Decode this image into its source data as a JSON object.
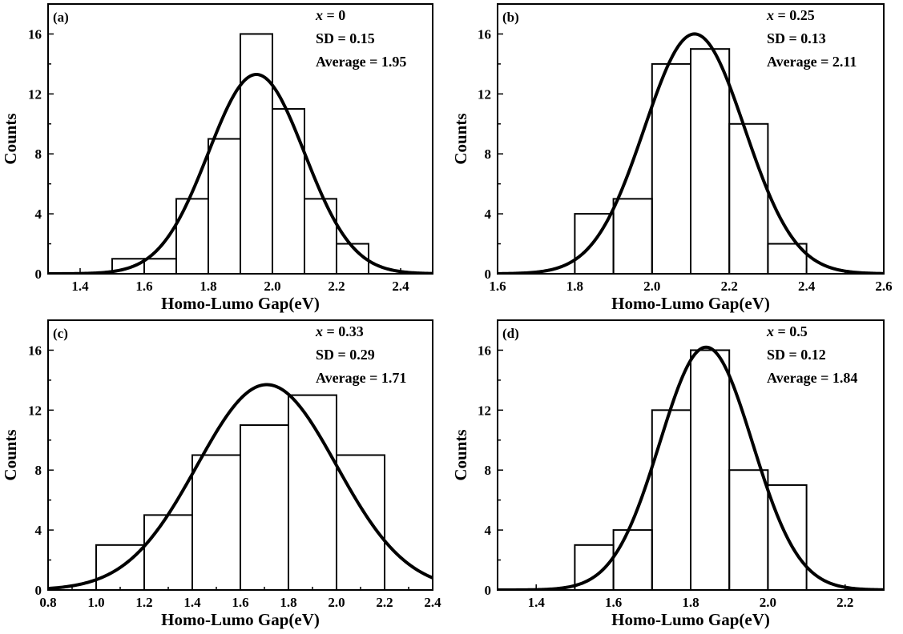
{
  "chart_data": [
    {
      "type": "bar",
      "panel_label": "(a)",
      "xlabel": "Homo-Lumo Gap(eV)",
      "ylabel": "Counts",
      "xlim": [
        1.3,
        2.5
      ],
      "ylim": [
        0,
        18
      ],
      "xticks": [
        1.4,
        1.6,
        1.8,
        2.0,
        2.2,
        2.4
      ],
      "yticks": [
        0,
        4,
        8,
        12,
        16
      ],
      "bins": [
        {
          "from": 1.5,
          "to": 1.6,
          "value": 1
        },
        {
          "from": 1.6,
          "to": 1.7,
          "value": 1
        },
        {
          "from": 1.7,
          "to": 1.8,
          "value": 5
        },
        {
          "from": 1.8,
          "to": 1.9,
          "value": 9
        },
        {
          "from": 1.9,
          "to": 2.0,
          "value": 16
        },
        {
          "from": 2.0,
          "to": 2.1,
          "value": 11
        },
        {
          "from": 2.1,
          "to": 2.2,
          "value": 5
        },
        {
          "from": 2.2,
          "to": 2.3,
          "value": 2
        }
      ],
      "fit": {
        "type": "gaussian",
        "mean": 1.95,
        "sd": 0.15,
        "peak": 13.3
      },
      "annotations": {
        "x_var": "x",
        "x_val": "= 0",
        "sd": "SD = 0.15",
        "avg": "Average = 1.95"
      }
    },
    {
      "type": "bar",
      "panel_label": "(b)",
      "xlabel": "Homo-Lumo Gap(eV)",
      "ylabel": "Counts",
      "xlim": [
        1.6,
        2.6
      ],
      "ylim": [
        0,
        18
      ],
      "xticks": [
        1.6,
        1.8,
        2.0,
        2.2,
        2.4,
        2.6
      ],
      "yticks": [
        0,
        4,
        8,
        12,
        16
      ],
      "bins": [
        {
          "from": 1.8,
          "to": 1.9,
          "value": 4
        },
        {
          "from": 1.9,
          "to": 2.0,
          "value": 5
        },
        {
          "from": 2.0,
          "to": 2.1,
          "value": 14
        },
        {
          "from": 2.1,
          "to": 2.2,
          "value": 15
        },
        {
          "from": 2.2,
          "to": 2.3,
          "value": 10
        },
        {
          "from": 2.3,
          "to": 2.4,
          "value": 2
        }
      ],
      "fit": {
        "type": "gaussian",
        "mean": 2.11,
        "sd": 0.13,
        "peak": 16.0
      },
      "annotations": {
        "x_var": "x",
        "x_val": "= 0.25",
        "sd": "SD = 0.13",
        "avg": "Average = 2.11"
      }
    },
    {
      "type": "bar",
      "panel_label": "(c)",
      "xlabel": "Homo-Lumo Gap(eV)",
      "ylabel": "Counts",
      "xlim": [
        0.8,
        2.4
      ],
      "ylim": [
        0,
        18
      ],
      "xticks": [
        0.8,
        1.0,
        1.2,
        1.4,
        1.6,
        1.8,
        2.0,
        2.2,
        2.4
      ],
      "yticks": [
        0,
        4,
        8,
        12,
        16
      ],
      "bins": [
        {
          "from": 1.0,
          "to": 1.2,
          "value": 3
        },
        {
          "from": 1.2,
          "to": 1.4,
          "value": 5
        },
        {
          "from": 1.4,
          "to": 1.6,
          "value": 9
        },
        {
          "from": 1.6,
          "to": 1.8,
          "value": 11
        },
        {
          "from": 1.8,
          "to": 2.0,
          "value": 13
        },
        {
          "from": 2.0,
          "to": 2.2,
          "value": 9
        }
      ],
      "fit": {
        "type": "gaussian",
        "mean": 1.71,
        "sd": 0.29,
        "peak": 13.7
      },
      "annotations": {
        "x_var": "x",
        "x_val": "= 0.33",
        "sd": "SD = 0.29",
        "avg": "Average = 1.71"
      }
    },
    {
      "type": "bar",
      "panel_label": "(d)",
      "xlabel": "Homo-Lumo Gap(eV)",
      "ylabel": "Counts",
      "xlim": [
        1.3,
        2.3
      ],
      "ylim": [
        0,
        18
      ],
      "xticks": [
        1.4,
        1.6,
        1.8,
        2.0,
        2.2
      ],
      "yticks": [
        0,
        4,
        8,
        12,
        16
      ],
      "bins": [
        {
          "from": 1.5,
          "to": 1.6,
          "value": 3
        },
        {
          "from": 1.6,
          "to": 1.7,
          "value": 4
        },
        {
          "from": 1.7,
          "to": 1.8,
          "value": 12
        },
        {
          "from": 1.8,
          "to": 1.9,
          "value": 16
        },
        {
          "from": 1.9,
          "to": 2.0,
          "value": 8
        },
        {
          "from": 2.0,
          "to": 2.1,
          "value": 7
        }
      ],
      "fit": {
        "type": "gaussian",
        "mean": 1.84,
        "sd": 0.12,
        "peak": 16.2
      },
      "annotations": {
        "x_var": "x",
        "x_val": "= 0.5",
        "sd": "SD = 0.12",
        "avg": "Average = 1.84"
      }
    }
  ]
}
